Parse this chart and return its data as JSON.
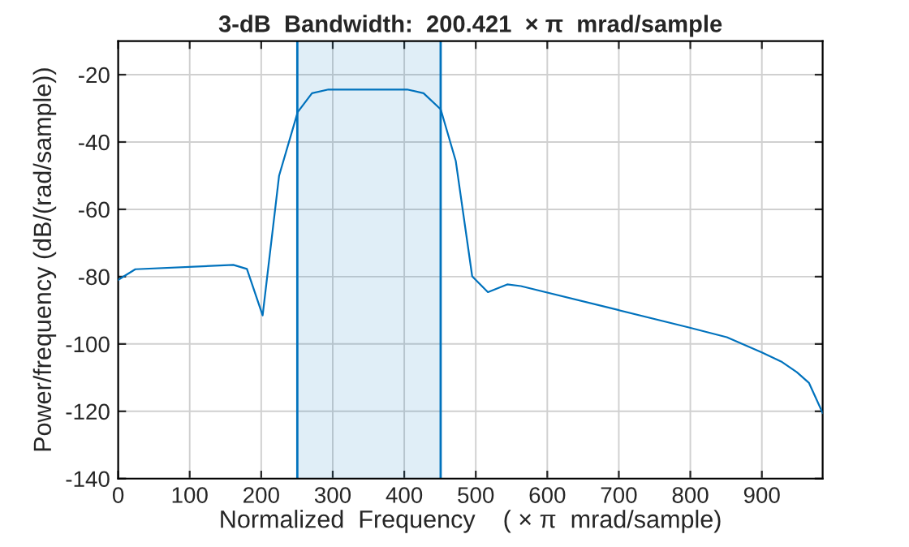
{
  "chart_data": {
    "type": "line",
    "title": "3-dB  Bandwidth:  200.421  × π  mrad/sample",
    "xlabel": "Normalized  Frequency    ( × π  mrad/sample)",
    "ylabel": "Power/frequency (dB/(rad/sample))",
    "series": [
      {
        "color": "#0072bd",
        "x": [
          0,
          2,
          24,
          161,
          180,
          202,
          225,
          251,
          271,
          294,
          404,
          427,
          451,
          472,
          495,
          517,
          544,
          563,
          699,
          798,
          851,
          900,
          927,
          949,
          966,
          985
        ],
        "values": [
          -81,
          -80.7,
          -77.8,
          -76.5,
          -77.7,
          -91.5,
          -50,
          -31.1,
          -25.5,
          -24.4,
          -24.4,
          -25.5,
          -30.3,
          -45.6,
          -79.9,
          -84.6,
          -82.3,
          -82.8,
          -89.9,
          -95.1,
          -98,
          -102.5,
          -105.2,
          -108.4,
          -111.6,
          -120.5
        ]
      }
    ],
    "bands": [
      {
        "axis": "x",
        "from": 250.5,
        "to": 450.9,
        "color": "#0072bd"
      }
    ],
    "ref_lines": [
      {
        "axis": "x",
        "value": 250.5,
        "color": "#0072bd"
      },
      {
        "axis": "x",
        "value": 450.9,
        "color": "#0072bd"
      }
    ],
    "xlim": [
      0,
      985
    ],
    "xticks": [
      0,
      100,
      200,
      300,
      400,
      500,
      600,
      700,
      800,
      900
    ],
    "ylim": [
      -140,
      -10
    ],
    "yticks": [
      -140,
      -120,
      -100,
      -80,
      -60,
      -40,
      -20
    ],
    "grid": true,
    "marker": "none",
    "line_style": "solid"
  }
}
